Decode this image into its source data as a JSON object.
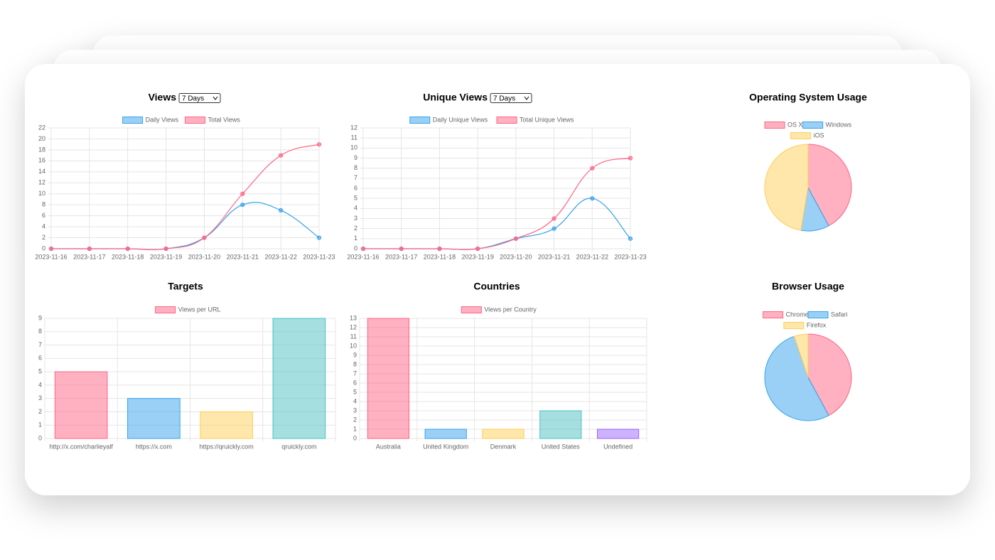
{
  "chart_data": [
    {
      "type": "line",
      "title": "Views",
      "range_option": "7 Days",
      "categories": [
        "2023-11-16",
        "2023-11-17",
        "2023-11-18",
        "2023-11-19",
        "2023-11-20",
        "2023-11-21",
        "2023-11-22",
        "2023-11-23"
      ],
      "series": [
        {
          "name": "Daily Views",
          "color": "#36a2eb",
          "values": [
            0,
            0,
            0,
            0,
            2,
            8,
            7,
            2
          ]
        },
        {
          "name": "Total Views",
          "color": "#ff6384",
          "values": [
            0,
            0,
            0,
            0,
            2,
            10,
            17,
            19
          ]
        }
      ],
      "ylim": [
        0,
        22
      ],
      "yticks": [
        0,
        2,
        4,
        6,
        8,
        10,
        12,
        14,
        16,
        18,
        20,
        22
      ],
      "grid": true,
      "legend": "top"
    },
    {
      "type": "line",
      "title": "Unique Views",
      "range_option": "7 Days",
      "categories": [
        "2023-11-16",
        "2023-11-17",
        "2023-11-18",
        "2023-11-19",
        "2023-11-20",
        "2023-11-21",
        "2023-11-22",
        "2023-11-23"
      ],
      "series": [
        {
          "name": "Daily Unique Views",
          "color": "#36a2eb",
          "values": [
            0,
            0,
            0,
            0,
            1,
            2,
            5,
            1
          ]
        },
        {
          "name": "Total Unique Views",
          "color": "#ff6384",
          "values": [
            0,
            0,
            0,
            0,
            1,
            3,
            8,
            9
          ]
        }
      ],
      "ylim": [
        0,
        12
      ],
      "yticks": [
        0,
        1,
        2,
        3,
        4,
        5,
        6,
        7,
        8,
        9,
        10,
        11,
        12
      ],
      "grid": true,
      "legend": "top"
    },
    {
      "type": "pie",
      "title": "Operating System Usage",
      "categories": [
        "OS X",
        "Windows",
        "iOS"
      ],
      "values": [
        8,
        2,
        9
      ],
      "colors": [
        "#ff6384",
        "#36a2eb",
        "#ffce56"
      ],
      "legend": "top"
    },
    {
      "type": "bar",
      "title": "Targets",
      "categories": [
        "http://x.com/charlieyalf",
        "https://x.com",
        "https://qruickly.com",
        "qruickly.com"
      ],
      "series": [
        {
          "name": "Views per URL",
          "colors": [
            "#ff6384",
            "#36a2eb",
            "#ffce56",
            "#4bc0c0"
          ],
          "values": [
            5,
            3,
            2,
            9
          ]
        }
      ],
      "ylim": [
        0,
        9
      ],
      "yticks": [
        0,
        1,
        2,
        3,
        4,
        5,
        6,
        7,
        8,
        9
      ],
      "grid": true,
      "legend": "top"
    },
    {
      "type": "bar",
      "title": "Countries",
      "categories": [
        "Australia",
        "United Kingdom",
        "Denmark",
        "United States",
        "Undefined"
      ],
      "series": [
        {
          "name": "Views per Country",
          "colors": [
            "#ff6384",
            "#36a2eb",
            "#ffce56",
            "#4bc0c0",
            "#9966ff"
          ],
          "values": [
            13,
            1,
            1,
            3,
            1
          ]
        }
      ],
      "ylim": [
        0,
        13
      ],
      "yticks": [
        0,
        1,
        2,
        3,
        4,
        5,
        6,
        7,
        8,
        9,
        10,
        11,
        12,
        13
      ],
      "grid": true,
      "legend": "top"
    },
    {
      "type": "pie",
      "title": "Browser Usage",
      "categories": [
        "Chrome",
        "Safari",
        "Firefox"
      ],
      "values": [
        8,
        10,
        1
      ],
      "colors": [
        "#ff6384",
        "#36a2eb",
        "#ffce56"
      ],
      "legend": "top"
    }
  ]
}
